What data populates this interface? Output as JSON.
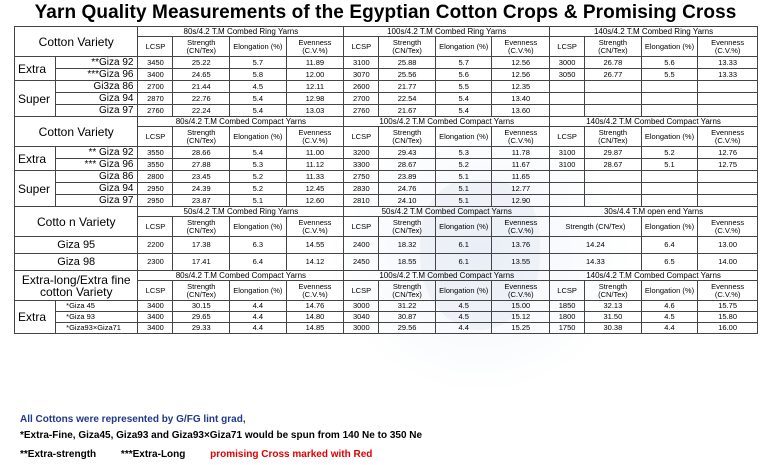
{
  "title": "Yarn Quality Measurements of the Egyptian Cotton Crops & Promising Cross",
  "head1": {
    "variety": "Cotton Variety",
    "groups": [
      "80s/4.2 T.M Combed Ring Yarns",
      "100s/4.2 T.M Combed Ring Yarns",
      "140s/4.2 T.M Combed Ring Yarns"
    ],
    "cols": [
      "LCSP",
      "Strength (CN/Tex)",
      "Elongation (%)",
      "Evenness (C.V.%)"
    ]
  },
  "block1": [
    {
      "cat": "Extra",
      "name": "**Giza 92",
      "red": false,
      "v": [
        "3450",
        "25.22",
        "5.7",
        "11.89",
        "3100",
        "25.88",
        "5.7",
        "12.56",
        "3000",
        "26.78",
        "5.6",
        "13.33"
      ]
    },
    {
      "cat": "",
      "name": "***Giza 96",
      "red": false,
      "v": [
        "3400",
        "24.65",
        "5.8",
        "12.00",
        "3070",
        "25.56",
        "5.6",
        "12.56",
        "3050",
        "26.77",
        "5.5",
        "13.33"
      ]
    },
    {
      "cat": "Super",
      "name": "Gi3za 86",
      "red": false,
      "v": [
        "2700",
        "21.44",
        "4.5",
        "12.11",
        "2600",
        "21.77",
        "5.5",
        "12.35",
        "",
        "",
        "",
        ""
      ]
    },
    {
      "cat": "",
      "name": "Giza 94",
      "red": false,
      "v": [
        "2870",
        "22.76",
        "5.4",
        "12.98",
        "2700",
        "22.54",
        "5.4",
        "13.40",
        "",
        "",
        "",
        ""
      ]
    },
    {
      "cat": "",
      "name": "Giza 97",
      "red": false,
      "v": [
        "2760",
        "22.24",
        "5.4",
        "13.03",
        "2760",
        "21.67",
        "5.4",
        "13.60",
        "",
        "",
        "",
        ""
      ]
    }
  ],
  "head2": {
    "variety": "Cotton Variety",
    "groups": [
      "80s/4.2 T.M Combed Compact Yarns",
      "100s/4.2 T.M Combed Compact Yarns",
      "140s/4.2 T.M Combed Compact Yarns"
    ],
    "cols": [
      "LCSP",
      "Strength (CN/Tex)",
      "Elongation (%)",
      "Evenness (C.V.%)"
    ]
  },
  "block2": [
    {
      "cat": "Extra",
      "name": "** Giza 92",
      "v": [
        "3550",
        "28.66",
        "5.4",
        "11.00",
        "3200",
        "29.43",
        "5.3",
        "11.78",
        "3100",
        "29.87",
        "5.2",
        "12.76"
      ]
    },
    {
      "cat": "",
      "name": "*** Giza 96",
      "v": [
        "3550",
        "27.88",
        "5.3",
        "11.12",
        "3300",
        "28.67",
        "5.2",
        "11.67",
        "3100",
        "28.67",
        "5.1",
        "12.75"
      ]
    },
    {
      "cat": "Super",
      "name": "Giza 86",
      "v": [
        "2800",
        "23.45",
        "5.2",
        "11.33",
        "2750",
        "23.89",
        "5.1",
        "11.65",
        "",
        "",
        "",
        ""
      ]
    },
    {
      "cat": "",
      "name": "Giza 94",
      "v": [
        "2950",
        "24.39",
        "5.2",
        "12.45",
        "2830",
        "24.76",
        "5.1",
        "12.77",
        "",
        "",
        "",
        ""
      ]
    },
    {
      "cat": "",
      "name": "Giza 97",
      "v": [
        "2950",
        "23.87",
        "5.1",
        "12.60",
        "2810",
        "24.10",
        "5.1",
        "12.90",
        "",
        "",
        "",
        ""
      ]
    }
  ],
  "head3": {
    "variety": "Cotto n Variety",
    "groups": [
      "50s/4.2 T.M Combed Ring Yarns",
      "50s/4.2 T.M Combed Compact Yarns",
      "30s/4.4 T.M open end Yarns"
    ],
    "cols": [
      "LCSP",
      "Strength (CN/Tex)",
      "Elongation (%)",
      "Evenness (C.V.%)"
    ],
    "cols_oe": [
      "Strength (CN/Tex)",
      "Elongation (%)",
      "Evenness (C.V.%)"
    ]
  },
  "block3": [
    {
      "name": "Giza 95",
      "v": [
        "2200",
        "17.38",
        "6.3",
        "14.55",
        "2400",
        "18.32",
        "6.1",
        "13.76",
        "14.24",
        "6.4",
        "13.00"
      ]
    },
    {
      "name": "Giza 98",
      "v": [
        "2300",
        "17.41",
        "6.4",
        "14.12",
        "2450",
        "18.55",
        "6.1",
        "13.55",
        "14.33",
        "6.5",
        "14.00"
      ]
    }
  ],
  "head4": {
    "variety": "Extra-long/Extra fine cotton Variety",
    "groups": [
      "80s/4.2 T.M Combed Compact Yarns",
      "100s/4.2 T.M Combed Compact Yarns",
      "140s/4.2 T.M Combed Compact Yarns"
    ],
    "cols": [
      "LCSP",
      "Strength (CN/Tex)",
      "Elongation (%)",
      "Evenness (C.V.%)"
    ]
  },
  "block4": [
    {
      "cat": "Extra",
      "name": "*Giza 45",
      "v": [
        "3400",
        "30.15",
        "4.4",
        "14.76",
        "3000",
        "31.22",
        "4.5",
        "15.00",
        "1850",
        "32.13",
        "4.6",
        "15.75"
      ]
    },
    {
      "cat": "",
      "name": "*Giza 93",
      "v": [
        "3400",
        "29.65",
        "4.4",
        "14.80",
        "3040",
        "30.87",
        "4.5",
        "15.12",
        "1800",
        "31.50",
        "4.5",
        "15.80"
      ]
    },
    {
      "cat": "",
      "name": "*Giza93×Giza71",
      "v": [
        "3400",
        "29.33",
        "4.4",
        "14.85",
        "3000",
        "29.56",
        "4.4",
        "15.25",
        "1750",
        "30.38",
        "4.4",
        "16.00"
      ]
    }
  ],
  "footer": {
    "line1": "All Cottons were represented by G/FG lint grad,",
    "line2": "*Extra-Fine, Giza45, Giza93 and Giza93×Giza71 would be spun from 140 Ne to 350 Ne",
    "extra_strength": "**Extra-strength",
    "extra_long": "***Extra-Long",
    "red_note": "promising Cross marked with Red"
  },
  "colors": {
    "footer_blue": "#1f3a8a",
    "red": "#e00000"
  }
}
